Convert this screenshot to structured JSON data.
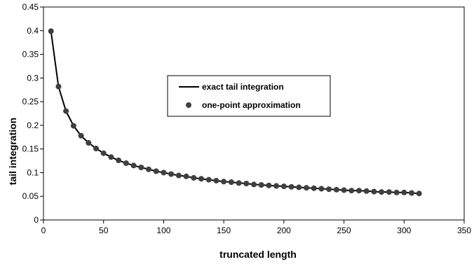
{
  "chart_data": {
    "type": "line",
    "xlabel": "truncated length",
    "ylabel": "tail integration",
    "xlim": [
      0,
      350
    ],
    "ylim": [
      0,
      0.45
    ],
    "x_ticks": [
      0,
      50,
      100,
      150,
      200,
      250,
      300,
      350
    ],
    "y_ticks": [
      0,
      0.05,
      0.1,
      0.15,
      0.2,
      0.25,
      0.3,
      0.35,
      0.4,
      0.45
    ],
    "grid": false,
    "legend_position": "center",
    "series": [
      {
        "name": "exact tail integration",
        "style": "line",
        "color": "#000000",
        "x": [
          6.25,
          12.5,
          18.75,
          25,
          31.25,
          37.5,
          43.75,
          50,
          56.25,
          62.5,
          68.75,
          75,
          81.25,
          87.5,
          93.75,
          100,
          106.25,
          112.5,
          118.75,
          125,
          131.25,
          137.5,
          143.75,
          150,
          156.25,
          162.5,
          168.75,
          175,
          181.25,
          187.5,
          193.75,
          200,
          206.25,
          212.5,
          218.75,
          225,
          231.25,
          237.5,
          243.75,
          250,
          256.25,
          262.5,
          268.75,
          275,
          281.25,
          287.5,
          293.75,
          300,
          306.25,
          312.5
        ],
        "y": [
          0.399,
          0.282,
          0.23,
          0.199,
          0.178,
          0.163,
          0.151,
          0.141,
          0.133,
          0.126,
          0.12,
          0.115,
          0.111,
          0.107,
          0.103,
          0.1,
          0.097,
          0.094,
          0.092,
          0.089,
          0.087,
          0.085,
          0.083,
          0.081,
          0.08,
          0.078,
          0.077,
          0.075,
          0.074,
          0.073,
          0.072,
          0.071,
          0.07,
          0.069,
          0.068,
          0.067,
          0.066,
          0.065,
          0.064,
          0.063,
          0.062,
          0.062,
          0.061,
          0.06,
          0.059,
          0.059,
          0.058,
          0.058,
          0.057,
          0.056
        ]
      },
      {
        "name": "one-point approximation",
        "style": "markers",
        "color": "#3f3f3f",
        "x": [
          6.25,
          12.5,
          18.75,
          25,
          31.25,
          37.5,
          43.75,
          50,
          56.25,
          62.5,
          68.75,
          75,
          81.25,
          87.5,
          93.75,
          100,
          106.25,
          112.5,
          118.75,
          125,
          131.25,
          137.5,
          143.75,
          150,
          156.25,
          162.5,
          168.75,
          175,
          181.25,
          187.5,
          193.75,
          200,
          206.25,
          212.5,
          218.75,
          225,
          231.25,
          237.5,
          243.75,
          250,
          256.25,
          262.5,
          268.75,
          275,
          281.25,
          287.5,
          293.75,
          300,
          306.25,
          312.5
        ],
        "y": [
          0.399,
          0.282,
          0.23,
          0.199,
          0.178,
          0.163,
          0.151,
          0.141,
          0.133,
          0.126,
          0.12,
          0.115,
          0.111,
          0.107,
          0.103,
          0.1,
          0.097,
          0.094,
          0.092,
          0.089,
          0.087,
          0.085,
          0.083,
          0.081,
          0.08,
          0.078,
          0.077,
          0.075,
          0.074,
          0.073,
          0.072,
          0.071,
          0.07,
          0.069,
          0.068,
          0.067,
          0.066,
          0.065,
          0.064,
          0.063,
          0.062,
          0.062,
          0.061,
          0.06,
          0.059,
          0.059,
          0.058,
          0.058,
          0.057,
          0.056
        ]
      }
    ]
  }
}
